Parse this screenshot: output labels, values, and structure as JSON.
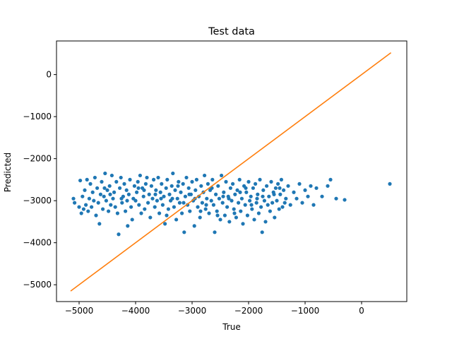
{
  "chart_data": {
    "type": "scatter",
    "title": "Test data",
    "xlabel": "True",
    "ylabel": "Predicted",
    "xlim": [
      -5400,
      800
    ],
    "ylim": [
      -5400,
      800
    ],
    "xticks": [
      -5000,
      -4000,
      -3000,
      -2000,
      -1000,
      0
    ],
    "yticks": [
      -5000,
      -4000,
      -3000,
      -2000,
      -1000,
      0
    ],
    "xtick_labels": [
      "−5000",
      "−4000",
      "−3000",
      "−2000",
      "−1000",
      "0"
    ],
    "ytick_labels": [
      "−5000",
      "−4000",
      "−3000",
      "−2000",
      "−1000",
      "0"
    ],
    "grid": false,
    "series": [
      {
        "kind": "scatter",
        "color": "#1f77b4",
        "points": [
          [
            -5100,
            -2950
          ],
          [
            -5080,
            -3050
          ],
          [
            -5000,
            -3150
          ],
          [
            -4980,
            -2520
          ],
          [
            -4960,
            -3300
          ],
          [
            -4940,
            -2900
          ],
          [
            -4920,
            -3200
          ],
          [
            -4900,
            -2750
          ],
          [
            -4880,
            -3100
          ],
          [
            -4860,
            -2500
          ],
          [
            -4840,
            -3250
          ],
          [
            -4820,
            -2950
          ],
          [
            -4800,
            -2600
          ],
          [
            -4780,
            -3150
          ],
          [
            -4760,
            -2800
          ],
          [
            -4740,
            -3000
          ],
          [
            -4720,
            -2450
          ],
          [
            -4700,
            -3350
          ],
          [
            -4680,
            -2700
          ],
          [
            -4660,
            -3050
          ],
          [
            -4640,
            -3550
          ],
          [
            -4620,
            -2850
          ],
          [
            -4600,
            -2550
          ],
          [
            -4580,
            -3200
          ],
          [
            -4560,
            -2900
          ],
          [
            -4540,
            -2350
          ],
          [
            -4520,
            -3000
          ],
          [
            -4500,
            -2750
          ],
          [
            -4480,
            -3250
          ],
          [
            -4460,
            -2650
          ],
          [
            -4440,
            -3100
          ],
          [
            -4420,
            -2400
          ],
          [
            -4400,
            -2950
          ],
          [
            -4380,
            -2800
          ],
          [
            -4360,
            -3150
          ],
          [
            -4340,
            -2550
          ],
          [
            -4320,
            -3300
          ],
          [
            -4300,
            -3800
          ],
          [
            -4280,
            -2700
          ],
          [
            -4260,
            -2450
          ],
          [
            -4240,
            -3050
          ],
          [
            -4220,
            -2900
          ],
          [
            -4200,
            -2600
          ],
          [
            -4180,
            -3250
          ],
          [
            -4160,
            -2750
          ],
          [
            -4140,
            -3600
          ],
          [
            -4120,
            -2850
          ],
          [
            -4100,
            -2500
          ],
          [
            -4080,
            -3150
          ],
          [
            -4060,
            -3450
          ],
          [
            -4040,
            -2950
          ],
          [
            -4020,
            -2650
          ],
          [
            -4000,
            -3000
          ],
          [
            -3980,
            -2800
          ],
          [
            -3960,
            -2550
          ],
          [
            -3940,
            -3100
          ],
          [
            -3920,
            -2400
          ],
          [
            -3900,
            -3300
          ],
          [
            -3880,
            -2700
          ],
          [
            -3860,
            -2900
          ],
          [
            -3840,
            -3200
          ],
          [
            -3820,
            -2600
          ],
          [
            -3800,
            -2450
          ],
          [
            -3780,
            -3050
          ],
          [
            -3760,
            -2850
          ],
          [
            -3740,
            -3400
          ],
          [
            -3720,
            -2650
          ],
          [
            -3700,
            -2950
          ],
          [
            -3680,
            -2500
          ],
          [
            -3660,
            -3150
          ],
          [
            -3640,
            -2750
          ],
          [
            -3620,
            -3000
          ],
          [
            -3600,
            -2450
          ],
          [
            -3580,
            -3300
          ],
          [
            -3560,
            -2800
          ],
          [
            -3540,
            -2600
          ],
          [
            -3520,
            -3100
          ],
          [
            -3500,
            -2900
          ],
          [
            -3480,
            -3550
          ],
          [
            -3460,
            -2700
          ],
          [
            -3440,
            -2500
          ],
          [
            -3420,
            -3200
          ],
          [
            -3400,
            -2850
          ],
          [
            -3380,
            -3000
          ],
          [
            -3360,
            -2650
          ],
          [
            -3340,
            -2350
          ],
          [
            -3320,
            -3150
          ],
          [
            -3300,
            -2750
          ],
          [
            -3280,
            -3450
          ],
          [
            -3260,
            -2950
          ],
          [
            -3240,
            -2550
          ],
          [
            -3220,
            -3050
          ],
          [
            -3200,
            -2800
          ],
          [
            -3180,
            -3300
          ],
          [
            -3160,
            -2600
          ],
          [
            -3140,
            -3750
          ],
          [
            -3120,
            -2900
          ],
          [
            -3100,
            -2450
          ],
          [
            -3080,
            -3100
          ],
          [
            -3060,
            -2700
          ],
          [
            -3040,
            -3250
          ],
          [
            -3020,
            -2850
          ],
          [
            -3000,
            -2550
          ],
          [
            -2980,
            -3000
          ],
          [
            -2960,
            -3600
          ],
          [
            -2940,
            -2750
          ],
          [
            -2920,
            -2500
          ],
          [
            -2900,
            -3150
          ],
          [
            -2880,
            -2900
          ],
          [
            -2860,
            -3400
          ],
          [
            -2840,
            -2650
          ],
          [
            -2820,
            -3050
          ],
          [
            -2800,
            -2800
          ],
          [
            -2780,
            -2400
          ],
          [
            -2760,
            -3200
          ],
          [
            -2740,
            -2950
          ],
          [
            -2720,
            -2600
          ],
          [
            -2700,
            -3300
          ],
          [
            -2680,
            -2750
          ],
          [
            -2660,
            -3000
          ],
          [
            -2640,
            -2500
          ],
          [
            -2620,
            -3100
          ],
          [
            -2600,
            -3750
          ],
          [
            -2580,
            -2850
          ],
          [
            -2560,
            -3250
          ],
          [
            -2540,
            -2650
          ],
          [
            -2520,
            -2950
          ],
          [
            -2500,
            -3450
          ],
          [
            -2480,
            -2400
          ],
          [
            -2460,
            -3050
          ],
          [
            -2440,
            -2800
          ],
          [
            -2420,
            -3350
          ],
          [
            -2400,
            -2550
          ],
          [
            -2380,
            -3150
          ],
          [
            -2360,
            -2900
          ],
          [
            -2340,
            -3500
          ],
          [
            -2320,
            -2700
          ],
          [
            -2300,
            -3000
          ],
          [
            -2280,
            -2600
          ],
          [
            -2260,
            -3200
          ],
          [
            -2240,
            -2850
          ],
          [
            -2220,
            -3400
          ],
          [
            -2200,
            -2750
          ],
          [
            -2180,
            -3050
          ],
          [
            -2160,
            -2500
          ],
          [
            -2140,
            -3250
          ],
          [
            -2120,
            -2950
          ],
          [
            -2100,
            -3550
          ],
          [
            -2080,
            -2650
          ],
          [
            -2060,
            -3100
          ],
          [
            -2040,
            -2800
          ],
          [
            -2020,
            -3350
          ],
          [
            -2000,
            -2550
          ],
          [
            -1980,
            -3000
          ],
          [
            -1960,
            -2900
          ],
          [
            -1940,
            -3200
          ],
          [
            -1920,
            -2700
          ],
          [
            -1900,
            -3450
          ],
          [
            -1880,
            -2600
          ],
          [
            -1860,
            -3050
          ],
          [
            -1840,
            -2850
          ],
          [
            -1820,
            -3300
          ],
          [
            -1800,
            -2500
          ],
          [
            -1780,
            -3150
          ],
          [
            -1760,
            -3750
          ],
          [
            -1740,
            -2750
          ],
          [
            -1720,
            -3000
          ],
          [
            -1700,
            -3500
          ],
          [
            -1680,
            -2650
          ],
          [
            -1660,
            -3100
          ],
          [
            -1640,
            -2900
          ],
          [
            -1620,
            -3250
          ],
          [
            -1600,
            -2550
          ],
          [
            -1580,
            -3050
          ],
          [
            -1560,
            -2800
          ],
          [
            -1540,
            -3400
          ],
          [
            -1520,
            -2700
          ],
          [
            -1500,
            -3000
          ],
          [
            -1480,
            -2600
          ],
          [
            -1460,
            -3200
          ],
          [
            -1440,
            -2850
          ],
          [
            -1420,
            -2500
          ],
          [
            -1400,
            -3150
          ],
          [
            -1380,
            -2750
          ],
          [
            -1360,
            -3050
          ],
          [
            -1340,
            -2950
          ],
          [
            -1300,
            -2650
          ],
          [
            -1260,
            -3100
          ],
          [
            -1200,
            -2800
          ],
          [
            -1150,
            -2950
          ],
          [
            -1100,
            -2600
          ],
          [
            -1050,
            -3050
          ],
          [
            -1000,
            -2750
          ],
          [
            -950,
            -2900
          ],
          [
            -900,
            -2650
          ],
          [
            -850,
            -3100
          ],
          [
            -800,
            -2700
          ],
          [
            -700,
            -2900
          ],
          [
            -600,
            -2650
          ],
          [
            -550,
            -2500
          ],
          [
            -450,
            -2950
          ],
          [
            -300,
            -2980
          ],
          [
            500,
            -2600
          ],
          [
            -4550,
            -2700
          ],
          [
            -4250,
            -2950
          ],
          [
            -3950,
            -2700
          ],
          [
            -3650,
            -2850
          ],
          [
            -3350,
            -2950
          ],
          [
            -3050,
            -2850
          ],
          [
            -2750,
            -3100
          ],
          [
            -2450,
            -2900
          ],
          [
            -2150,
            -2800
          ],
          [
            -1850,
            -2950
          ],
          [
            -1550,
            -2850
          ],
          [
            -4450,
            -2850
          ],
          [
            -4150,
            -3000
          ],
          [
            -3850,
            -2750
          ],
          [
            -3550,
            -2950
          ],
          [
            -3250,
            -2650
          ],
          [
            -2950,
            -2950
          ],
          [
            -2650,
            -2700
          ],
          [
            -2350,
            -2950
          ],
          [
            -2050,
            -2700
          ],
          [
            -1750,
            -2900
          ],
          [
            -1450,
            -2700
          ],
          [
            -3450,
            -3350
          ],
          [
            -2550,
            -3350
          ],
          [
            -2250,
            -3300
          ],
          [
            -1950,
            -3100
          ],
          [
            -2850,
            -3250
          ],
          [
            -3150,
            -3050
          ]
        ]
      },
      {
        "kind": "line",
        "color": "#ff7f0e",
        "points": [
          [
            -5150,
            -5150
          ],
          [
            520,
            520
          ]
        ]
      }
    ]
  }
}
